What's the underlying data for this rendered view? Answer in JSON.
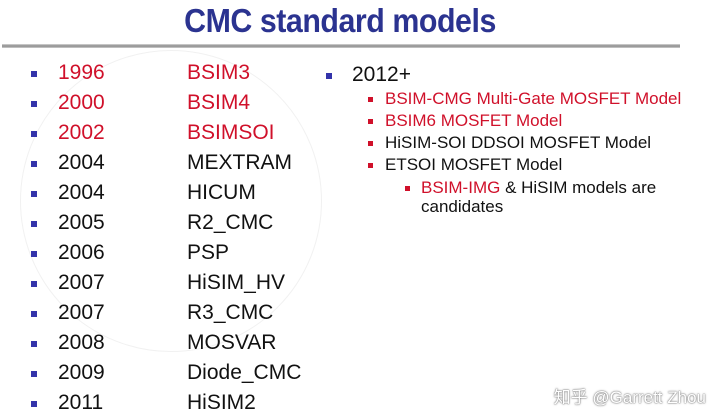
{
  "title": "CMC standard models",
  "colors": {
    "title": "#2b3390",
    "highlight": "#d0102a",
    "bullet": "#3333aa",
    "text": "#111111"
  },
  "timeline": [
    {
      "year": "1996",
      "model": "BSIM3",
      "highlight": true
    },
    {
      "year": "2000",
      "model": "BSIM4",
      "highlight": true
    },
    {
      "year": "2002",
      "model": "BSIMSOI",
      "highlight": true
    },
    {
      "year": "2004",
      "model": "MEXTRAM",
      "highlight": false
    },
    {
      "year": "2004",
      "model": "HICUM",
      "highlight": false
    },
    {
      "year": "2005",
      "model": "R2_CMC",
      "highlight": false
    },
    {
      "year": "2006",
      "model": "PSP",
      "highlight": false
    },
    {
      "year": "2007",
      "model": "HiSIM_HV",
      "highlight": false
    },
    {
      "year": "2007",
      "model": "R3_CMC",
      "highlight": false
    },
    {
      "year": "2008",
      "model": "MOSVAR",
      "highlight": false
    },
    {
      "year": "2009",
      "model": "Diode_CMC",
      "highlight": false
    },
    {
      "year": "2011",
      "model": "HiSIM2",
      "highlight": false
    }
  ],
  "future": {
    "label": "2012+",
    "items": [
      {
        "text": "BSIM-CMG Multi-Gate MOSFET Model",
        "highlight": true
      },
      {
        "text": "BSIM6 MOSFET Model",
        "highlight": true
      },
      {
        "text": "HiSIM-SOI DDSOI MOSFET Model",
        "highlight": false
      },
      {
        "text": "ETSOI MOSFET Model",
        "highlight": false
      }
    ],
    "candidates": {
      "highlight_text": "BSIM-IMG",
      "rest_line1": " & HiSIM models are",
      "rest_line2": "candidates"
    }
  },
  "watermark": "知乎 @Garrett Zhou"
}
